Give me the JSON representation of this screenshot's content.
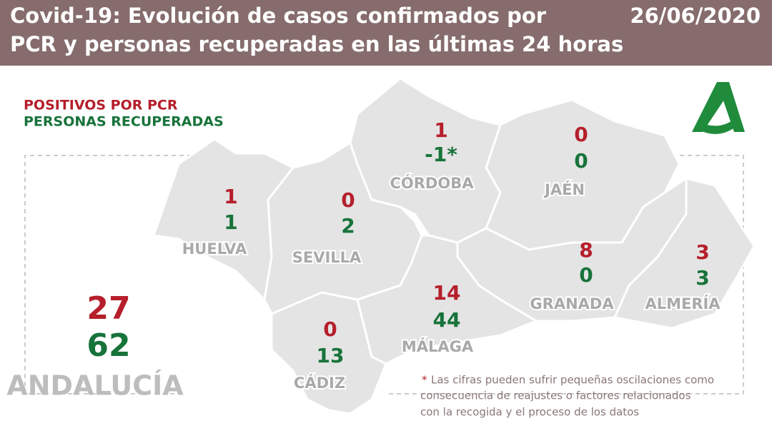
{
  "header": {
    "title_lines": [
      "Covid-19: Evolución de casos confirmados por",
      "PCR y personas recuperadas en las últimas 24 horas"
    ],
    "date": "26/06/2020"
  },
  "legend": {
    "positives": "POSITIVOS POR PCR",
    "recovered": "PERSONAS RECUPERADAS"
  },
  "provinces": [
    {
      "name": "HUELVA",
      "positives": 1,
      "recovered": 1
    },
    {
      "name": "SEVILLA",
      "positives": 0,
      "recovered": 2
    },
    {
      "name": "CÓRDOBA",
      "positives": 1,
      "recovered": "-1*"
    },
    {
      "name": "JAÉN",
      "positives": 0,
      "recovered": 0
    },
    {
      "name": "GRANADA",
      "positives": 8,
      "recovered": 0
    },
    {
      "name": "ALMERÍA",
      "positives": 3,
      "recovered": 3
    },
    {
      "name": "MÁLAGA",
      "positives": 14,
      "recovered": 44
    },
    {
      "name": "CÁDIZ",
      "positives": 0,
      "recovered": 13
    }
  ],
  "total": {
    "name": "ANDALUCÍA",
    "positives": 27,
    "recovered": 62
  },
  "note": {
    "mark": "*",
    "lines": [
      "Las cifras pueden sufrir pequeñas oscilaciones como",
      "consecuencia de reajustes o factores relacionados",
      "con la recogida y el proceso de los datos"
    ]
  }
}
